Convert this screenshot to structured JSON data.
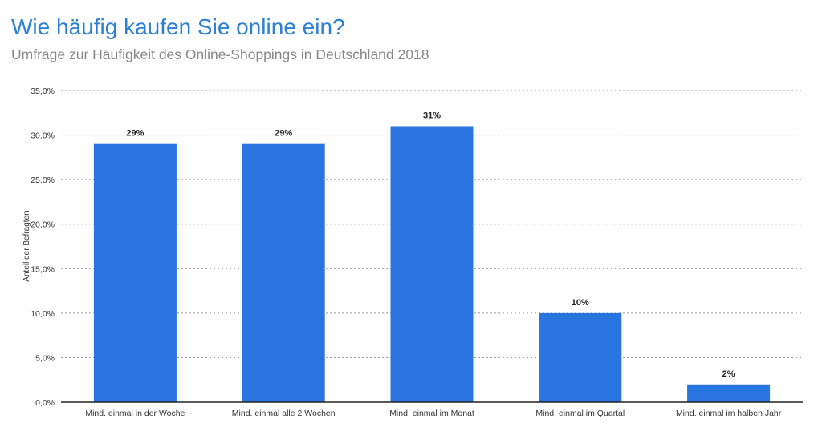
{
  "colors": {
    "title": "#2c7fd6",
    "subtitle": "#888888",
    "bar": "#2976e0"
  },
  "chart_data": {
    "type": "bar",
    "title": "Wie häufig kaufen Sie online ein?",
    "subtitle": "Umfrage zur Häufigkeit des Online-Shoppings in Deutschland 2018",
    "ylabel": "Anteil der Befragten",
    "xlabel": "",
    "ylim": [
      0,
      35
    ],
    "yticks": [
      0,
      5,
      10,
      15,
      20,
      25,
      30,
      35
    ],
    "ytick_labels": [
      "0,0%",
      "5,0%",
      "10,0%",
      "15,0%",
      "20,0%",
      "25,0%",
      "30,0%",
      "35,0%"
    ],
    "grid": true,
    "categories": [
      "Mind. einmal in der Woche",
      "Mind. einmal alle 2 Wochen",
      "Mind. einmal im Monat",
      "Mind. einmal im Quartal",
      "Mind. einmal im halben Jahr"
    ],
    "values": [
      29,
      29,
      31,
      10,
      2
    ],
    "data_labels": [
      "29%",
      "29%",
      "31%",
      "10%",
      "2%"
    ]
  }
}
